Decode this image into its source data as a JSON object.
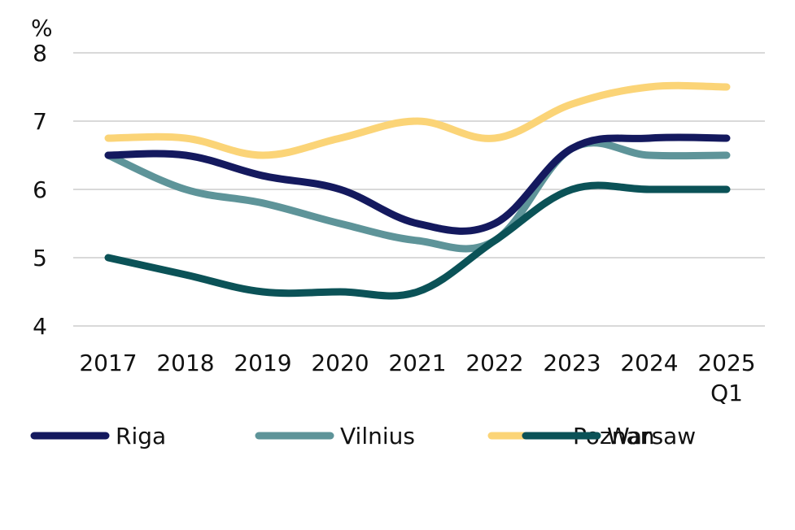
{
  "chart_data": {
    "type": "line",
    "ylabel": "%",
    "ylim": [
      4,
      8
    ],
    "yticks": [
      4,
      5,
      6,
      7,
      8
    ],
    "categories": [
      "2017",
      "2018",
      "2019",
      "2020",
      "2021",
      "2022",
      "2023",
      "2024",
      "2025 Q1"
    ],
    "category_lines": [
      [
        "2017"
      ],
      [
        "2018"
      ],
      [
        "2019"
      ],
      [
        "2020"
      ],
      [
        "2021"
      ],
      [
        "2022"
      ],
      [
        "2023"
      ],
      [
        "2024"
      ],
      [
        "2025",
        "Q1"
      ]
    ],
    "grid": true,
    "legend_position": "bottom",
    "series": [
      {
        "name": "Riga",
        "color": "#14195e",
        "values": [
          6.5,
          6.5,
          6.2,
          6.0,
          5.5,
          5.5,
          6.6,
          6.75,
          6.75
        ]
      },
      {
        "name": "Vilnius",
        "color": "#5e9499",
        "values": [
          6.5,
          6.0,
          5.8,
          5.5,
          5.25,
          5.25,
          6.6,
          6.5,
          6.5
        ]
      },
      {
        "name": "Poznan",
        "color": "#fbd477",
        "values": [
          6.75,
          6.75,
          6.5,
          6.75,
          7.0,
          6.75,
          7.25,
          7.5,
          7.5
        ]
      },
      {
        "name": "Warsaw",
        "color": "#0b5257",
        "values": [
          5.0,
          4.75,
          4.5,
          4.5,
          4.5,
          5.25,
          6.0,
          6.0,
          6.0
        ]
      }
    ]
  }
}
